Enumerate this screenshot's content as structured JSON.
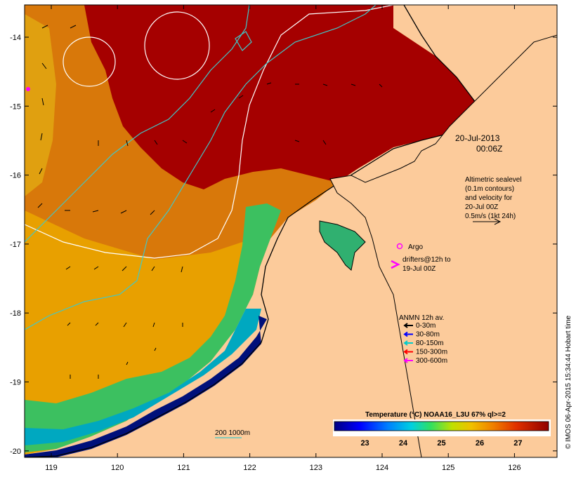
{
  "map": {
    "date_line1": "20-Jul-2013",
    "date_line2": "00:06Z",
    "altimetry_lines": [
      "Altimetric sealevel",
      "(0.1m contours)",
      "and velocity for",
      "20-Jul 00Z",
      "0.5m/s (1kt 24h)"
    ],
    "argo_label": "Argo",
    "drifters_lines": [
      "drifters@12h to",
      "19-Jul 00Z"
    ],
    "anmn_title": "ANMN 12h av.",
    "anmn_legend": [
      {
        "label": "0-30m",
        "color": "#000000"
      },
      {
        "label": "30-80m",
        "color": "#0000ff"
      },
      {
        "label": "80-150m",
        "color": "#00cccc"
      },
      {
        "label": "150-300m",
        "color": "#ff0000"
      },
      {
        "label": "300-600m",
        "color": "#ff00ff"
      }
    ],
    "isobath_label": "200  1000m",
    "colorbar_title": "Temperature (°C) NOAA16_L3U 67% ql>=2",
    "colorbar_ticks": [
      "23",
      "24",
      "25",
      "26",
      "27"
    ],
    "colorbar_range": [
      22.2,
      27.8
    ],
    "x_ticks": [
      "119",
      "120",
      "121",
      "122",
      "123",
      "124",
      "125",
      "126"
    ],
    "y_ticks": [
      "-14",
      "-15",
      "-16",
      "-17",
      "-18",
      "-19",
      "-20"
    ],
    "credit": "© IMOS 06-Apr-2015 15:34:44 Hobart time",
    "colors": {
      "land": "#fccb9b",
      "sst_hot": "#a50000",
      "sst_warm": "#d06010",
      "sst_mid": "#e8a000",
      "sst_green": "#30c050",
      "sst_cool": "#00a0c0",
      "sst_cold": "#00107a",
      "contour": "#ffffff",
      "isobath": "#40c8c8",
      "argo": "#ff00ff"
    }
  }
}
